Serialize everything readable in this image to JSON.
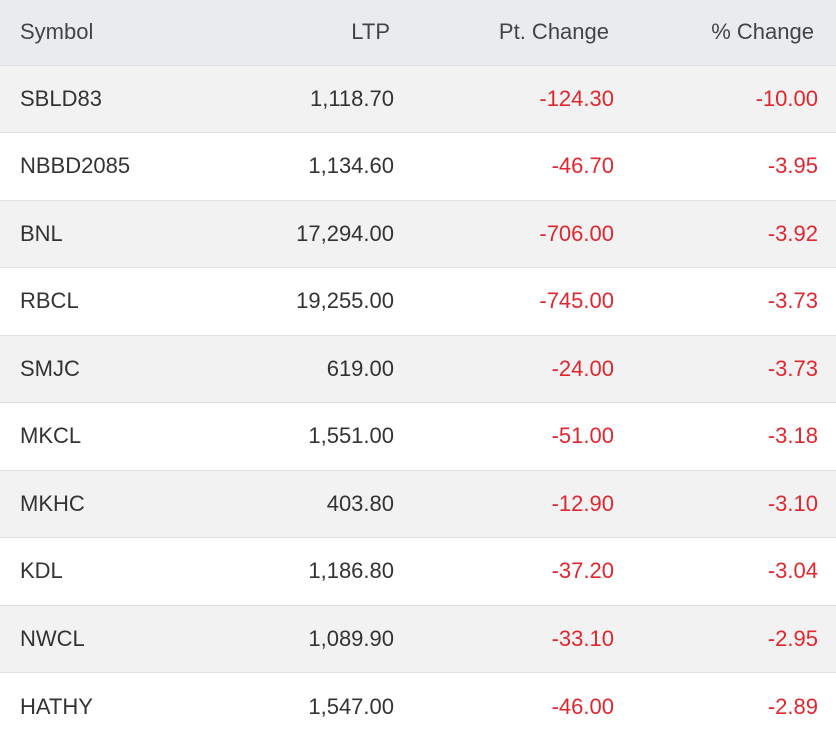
{
  "colors": {
    "negative": "#e0272f",
    "header_bg": "#e9ecef",
    "stripe_bg": "#f2f2f2"
  },
  "headers": {
    "symbol": "Symbol",
    "ltp": "LTP",
    "pt_change": "Pt. Change",
    "pct_change": "% Change"
  },
  "rows": [
    {
      "symbol": "SBLD83",
      "ltp": "1,118.70",
      "pt": "-124.30",
      "pct": "-10.00"
    },
    {
      "symbol": "NBBD2085",
      "ltp": "1,134.60",
      "pt": "-46.70",
      "pct": "-3.95"
    },
    {
      "symbol": "BNL",
      "ltp": "17,294.00",
      "pt": "-706.00",
      "pct": "-3.92"
    },
    {
      "symbol": "RBCL",
      "ltp": "19,255.00",
      "pt": "-745.00",
      "pct": "-3.73"
    },
    {
      "symbol": "SMJC",
      "ltp": "619.00",
      "pt": "-24.00",
      "pct": "-3.73"
    },
    {
      "symbol": "MKCL",
      "ltp": "1,551.00",
      "pt": "-51.00",
      "pct": "-3.18"
    },
    {
      "symbol": "MKHC",
      "ltp": "403.80",
      "pt": "-12.90",
      "pct": "-3.10"
    },
    {
      "symbol": "KDL",
      "ltp": "1,186.80",
      "pt": "-37.20",
      "pct": "-3.04"
    },
    {
      "symbol": "NWCL",
      "ltp": "1,089.90",
      "pt": "-33.10",
      "pct": "-2.95"
    },
    {
      "symbol": "HATHY",
      "ltp": "1,547.00",
      "pt": "-46.00",
      "pct": "-2.89"
    }
  ]
}
